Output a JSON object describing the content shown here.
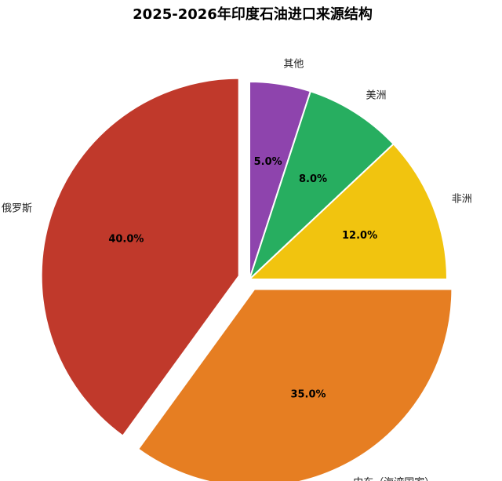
{
  "chart_data": {
    "type": "pie",
    "title": "2025-2026年印度石油进口来源结构",
    "slices": [
      {
        "label": "其他",
        "value": 5.0,
        "percent_label": "5.0%",
        "color": "#8e44ad",
        "explode": false
      },
      {
        "label": "美洲",
        "value": 8.0,
        "percent_label": "8.0%",
        "color": "#27ae60",
        "explode": false
      },
      {
        "label": "非洲",
        "value": 12.0,
        "percent_label": "12.0%",
        "color": "#f1c40f",
        "explode": false
      },
      {
        "label": "中东（海湾国家）",
        "value": 35.0,
        "percent_label": "35.0%",
        "color": "#e67e22",
        "explode": true
      },
      {
        "label": "俄罗斯",
        "value": 40.0,
        "percent_label": "40.0%",
        "color": "#c0392b",
        "explode": true
      }
    ],
    "start_angle": "12 o'clock",
    "direction": "clockwise",
    "legend": "none"
  }
}
